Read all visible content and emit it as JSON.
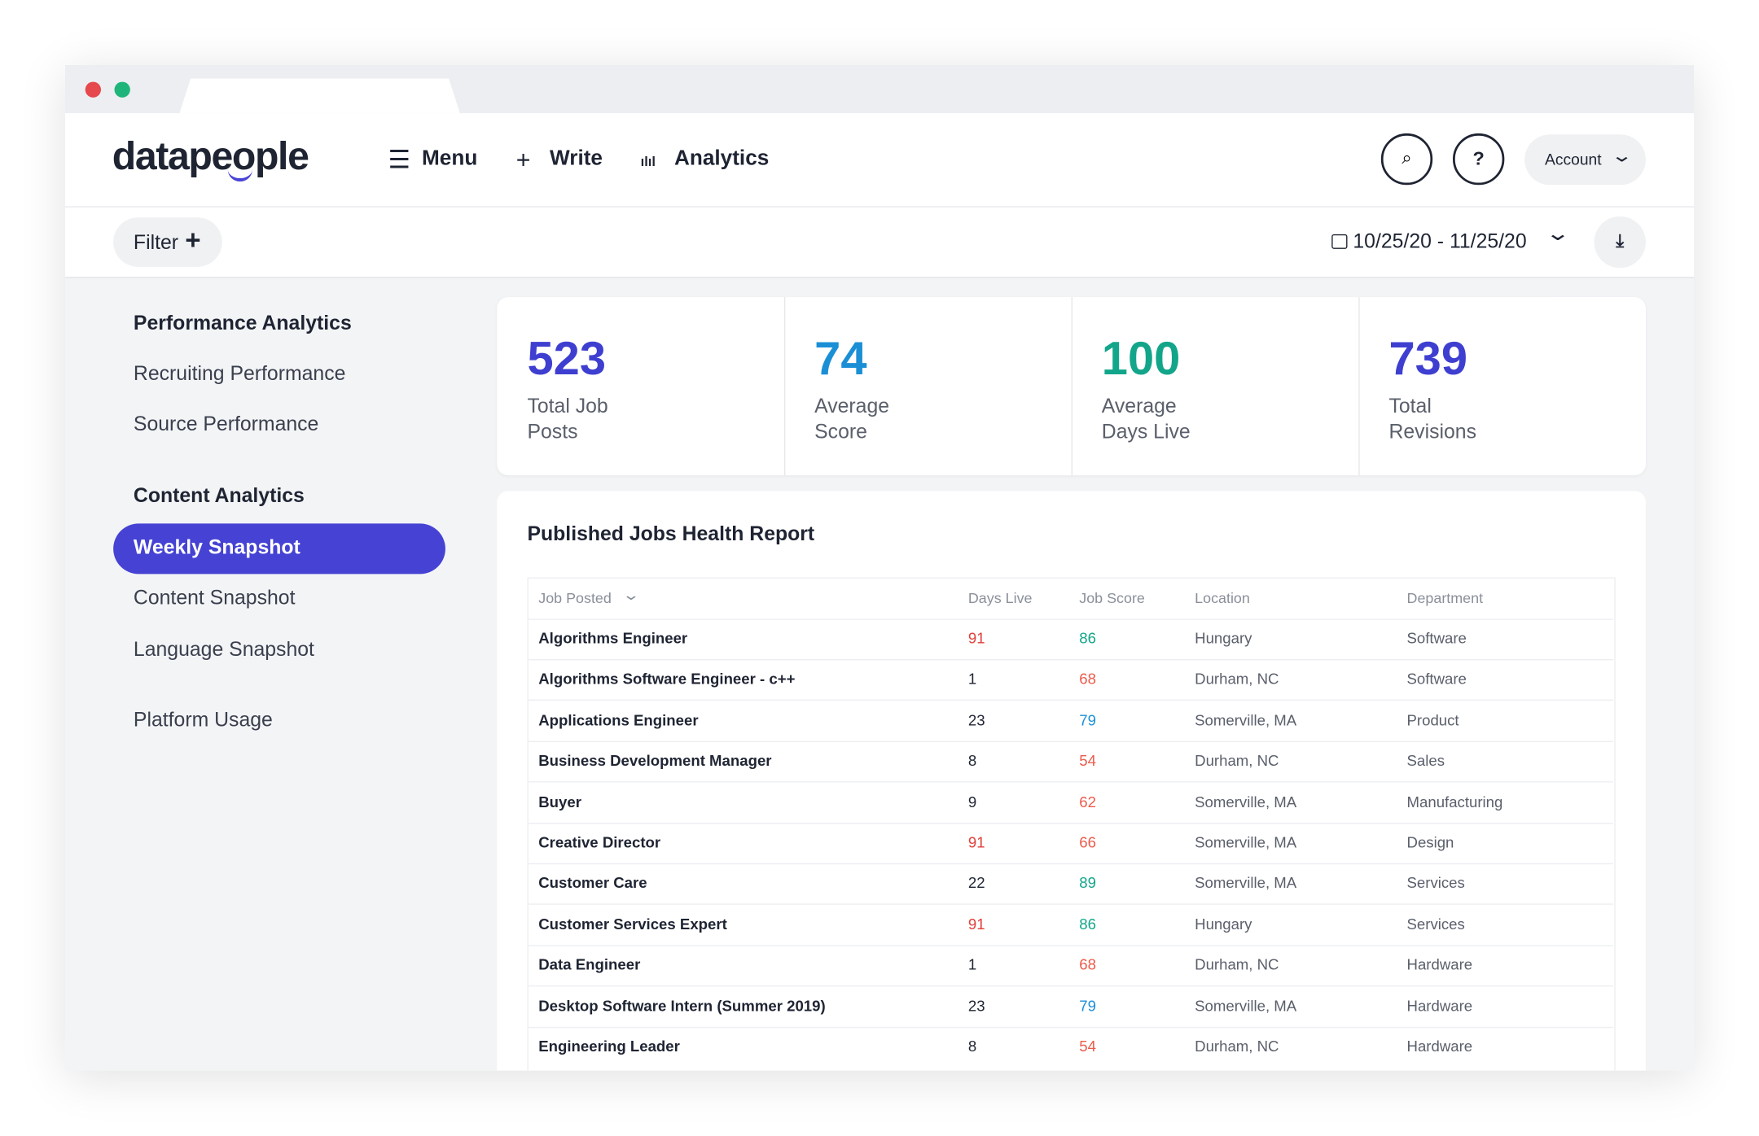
{
  "header": {
    "logo": "datapeople",
    "nav": [
      "Menu",
      "Write",
      "Analytics"
    ],
    "help": "?",
    "account": "Account"
  },
  "toolbar": {
    "filter": "Filter",
    "date_range": "10/25/20 - 11/25/20"
  },
  "sidebar": {
    "sections": [
      {
        "title": "Performance Analytics",
        "items": [
          "Recruiting Performance",
          "Source Performance"
        ]
      },
      {
        "title": "Content Analytics",
        "items": [
          "Weekly Snapshot",
          "Content Snapshot",
          "Language Snapshot"
        ]
      }
    ],
    "footer": "Platform Usage",
    "active": "Weekly Snapshot"
  },
  "stats": [
    {
      "value": "523",
      "label": "Total Job Posts",
      "color": "#3e3fd0"
    },
    {
      "value": "74",
      "label": "Average Score",
      "color": "#1b8fd6"
    },
    {
      "value": "100",
      "label": "Average Days Live",
      "color": "#12a58a"
    },
    {
      "value": "739",
      "label": "Total Revisions",
      "color": "#3e3fd0"
    }
  ],
  "table": {
    "title": "Published Jobs Health Report",
    "columns": [
      "Job Posted",
      "Days Live",
      "Job Score",
      "Location",
      "Department"
    ],
    "rows": [
      [
        "Algorithms Engineer",
        91,
        86,
        "Hungary",
        "Software"
      ],
      [
        "Algorithms Software Engineer - c++",
        1,
        68,
        "Durham, NC",
        "Software"
      ],
      [
        "Applications Engineer",
        23,
        79,
        "Somerville, MA",
        "Product"
      ],
      [
        "Business Development Manager",
        8,
        54,
        "Durham, NC",
        "Sales"
      ],
      [
        "Buyer",
        9,
        62,
        "Somerville, MA",
        "Manufacturing"
      ],
      [
        "Creative Director",
        91,
        66,
        "Somerville, MA",
        "Design"
      ],
      [
        "Customer Care",
        22,
        89,
        "Somerville, MA",
        "Services"
      ],
      [
        "Customer Services Expert",
        91,
        86,
        "Hungary",
        "Services"
      ],
      [
        "Data Engineer",
        1,
        68,
        "Durham, NC",
        "Hardware"
      ],
      [
        "Desktop Software Intern (Summer 2019)",
        23,
        79,
        "Somerville, MA",
        "Hardware"
      ],
      [
        "Engineering Leader",
        8,
        54,
        "Durham, NC",
        "Hardware"
      ]
    ]
  }
}
